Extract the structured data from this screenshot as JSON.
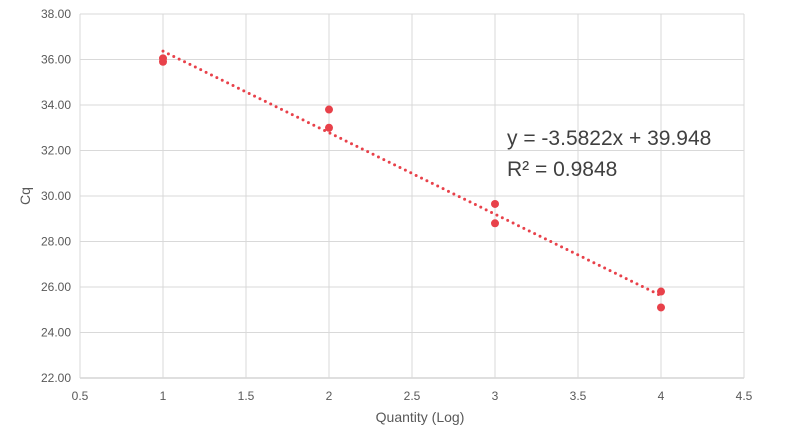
{
  "chart_data": {
    "type": "scatter",
    "title": "",
    "xlabel": "Quantity (Log)",
    "ylabel": "Cq",
    "xlim": [
      0.5,
      4.5
    ],
    "ylim": [
      22,
      38
    ],
    "x_ticks": [
      "0.5",
      "1",
      "1.5",
      "2",
      "2.5",
      "3",
      "3.5",
      "4",
      "4.5"
    ],
    "y_ticks": [
      "22.00",
      "24.00",
      "26.00",
      "28.00",
      "30.00",
      "32.00",
      "34.00",
      "36.00",
      "38.00"
    ],
    "grid": true,
    "legend": "none",
    "series": [
      {
        "points": [
          {
            "x": 1,
            "y": 36.05
          },
          {
            "x": 1,
            "y": 35.9
          },
          {
            "x": 2,
            "y": 33.8
          },
          {
            "x": 2,
            "y": 33.0
          },
          {
            "x": 3,
            "y": 29.65
          },
          {
            "x": 3,
            "y": 28.8
          },
          {
            "x": 4,
            "y": 25.8
          },
          {
            "x": 4,
            "y": 25.1
          }
        ]
      }
    ],
    "trendline": {
      "type": "linear",
      "slope": -3.5822,
      "intercept": 39.948,
      "x_range": [
        1,
        4
      ],
      "style": "dotted"
    },
    "annotations": {
      "equation": "y = -3.5822x + 39.948",
      "r_squared": "R² = 0.9848"
    },
    "colors": {
      "points": "#e8414a",
      "trendline": "#e8414a",
      "grid": "#d9d9d9",
      "axis": "#bfbfbf",
      "text": "#595959"
    }
  }
}
